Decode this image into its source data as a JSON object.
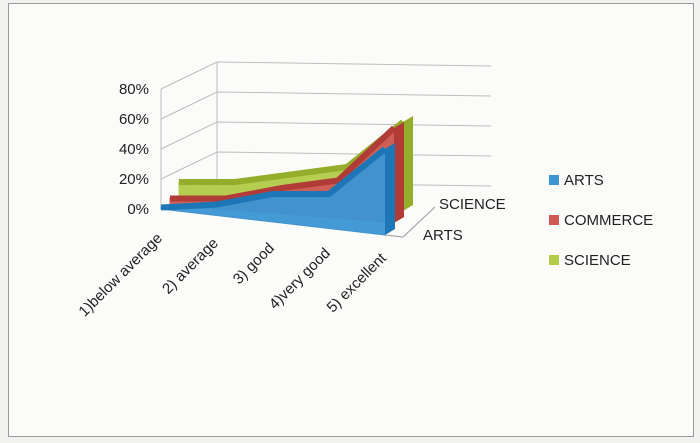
{
  "chart_data": {
    "type": "area",
    "view": "3d",
    "categories": [
      "1)below average",
      "2) average",
      "3) good",
      "4)very good",
      "5) excellent"
    ],
    "series": [
      {
        "name": "ARTS",
        "color": "#3b95d4",
        "values": [
          1,
          3,
          10,
          10,
          40
        ]
      },
      {
        "name": "COMMERCE",
        "color": "#cf5a55",
        "values": [
          3,
          3,
          10,
          15,
          50
        ]
      },
      {
        "name": "SCIENCE",
        "color": "#b2cc4a",
        "values": [
          10,
          10,
          15,
          20,
          50
        ]
      }
    ],
    "y_ticks": [
      "0%",
      "20%",
      "40%",
      "60%",
      "80%"
    ],
    "ylim": [
      0,
      80
    ],
    "depth_axis_labels": [
      "ARTS",
      "SCIENCE"
    ],
    "legend": {
      "position": "right",
      "items": [
        "ARTS",
        "COMMERCE",
        "SCIENCE"
      ]
    },
    "grid": true,
    "title": "",
    "xlabel": "",
    "ylabel": ""
  }
}
